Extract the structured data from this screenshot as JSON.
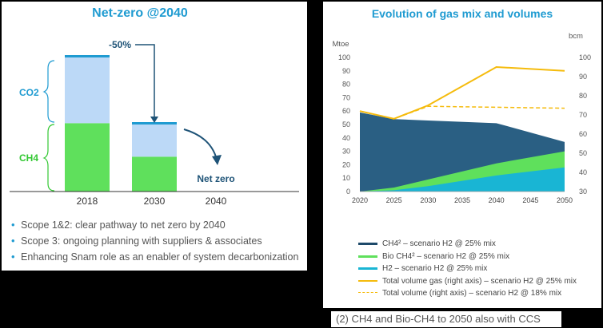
{
  "left": {
    "title": "Net-zero @2040",
    "reduction_label": "-50%",
    "net_zero_label": "Net zero",
    "co2_label": "CO2",
    "ch4_label": "CH4",
    "bullets": [
      "Scope 1&2: clear pathway to net zero by 2040",
      "Scope 3: ongoing planning with suppliers & associates",
      "Enhancing Snam role as an enabler of system decarbonization"
    ]
  },
  "right": {
    "caption": "(2) CH4 and Bio-CH4 to 2050 also with CCS"
  },
  "colors": {
    "title": "#1f9bd1",
    "ch4_left": "#5fe05c",
    "co2_left": "#bcd9f7",
    "dark_navy": "#1e4a6a",
    "ch4_dark": "#2a5f83",
    "bio_ch4": "#5fe05c",
    "h2": "#19b5d4",
    "total_gas": "#f5bb0c",
    "arrow": "#1e5377"
  },
  "chart_data": [
    {
      "type": "bar",
      "title": "Net-zero @2040",
      "categories": [
        "2018",
        "2030",
        "2040"
      ],
      "series": [
        {
          "name": "CH4",
          "values": [
            51,
            26,
            0
          ]
        },
        {
          "name": "CO2",
          "values": [
            49,
            24,
            0
          ]
        }
      ],
      "ylim": [
        0,
        100
      ],
      "annotations": [
        "-50%",
        "Net zero"
      ]
    },
    {
      "type": "area",
      "title": "Evolution of gas mix and volumes",
      "ylabel": "Mtoe",
      "y2label": "bcm",
      "x": [
        2020,
        2025,
        2030,
        2040,
        2050
      ],
      "xticks": [
        "2020",
        "2025",
        "2030",
        "2035",
        "2040",
        "2045",
        "2050"
      ],
      "yticks": [
        "0",
        "10",
        "20",
        "30",
        "40",
        "50",
        "60",
        "70",
        "80",
        "90",
        "100"
      ],
      "y2ticks": [
        "30",
        "40",
        "50",
        "60",
        "70",
        "80",
        "90",
        "100"
      ],
      "ylim": [
        0,
        100
      ],
      "y2lim": [
        30,
        100
      ],
      "grid": false,
      "legend_position": "bottom",
      "series": [
        {
          "name": "CH4² – scenario H2 @ 25% mix",
          "kind": "area",
          "values": [
            59,
            54,
            53,
            51,
            37
          ]
        },
        {
          "name": "Bio CH4² – scenario H2 @ 25% mix",
          "kind": "area",
          "values": [
            0,
            3,
            9,
            21,
            30
          ]
        },
        {
          "name": "H2 – scenario H2 @ 25% mix",
          "kind": "area",
          "values": [
            0,
            1,
            4,
            12,
            18
          ]
        },
        {
          "name": "Total volume gas (right axis) – scenario H2 @ 25% mix",
          "kind": "line",
          "axis": "right",
          "values": [
            72,
            68,
            75,
            95,
            93
          ]
        },
        {
          "name": "Total volume (right axis) – scenario H2 @ 18% mix",
          "kind": "dashed-line",
          "axis": "right",
          "values": [
            72,
            68,
            74.5,
            74,
            73.5
          ]
        }
      ]
    }
  ]
}
